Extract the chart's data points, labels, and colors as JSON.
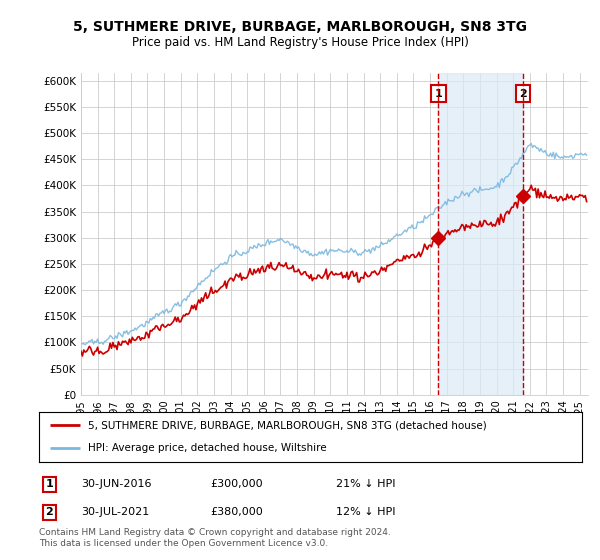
{
  "title": "5, SUTHMERE DRIVE, BURBAGE, MARLBOROUGH, SN8 3TG",
  "subtitle": "Price paid vs. HM Land Registry's House Price Index (HPI)",
  "ylabel_ticks": [
    "£0",
    "£50K",
    "£100K",
    "£150K",
    "£200K",
    "£250K",
    "£300K",
    "£350K",
    "£400K",
    "£450K",
    "£500K",
    "£550K",
    "£600K"
  ],
  "ytick_values": [
    0,
    50000,
    100000,
    150000,
    200000,
    250000,
    300000,
    350000,
    400000,
    450000,
    500000,
    550000,
    600000
  ],
  "ylim": [
    0,
    615000
  ],
  "xlim_start": 1995.0,
  "xlim_end": 2025.5,
  "hpi_color": "#7ab8e0",
  "hpi_fill_color": "#daeaf7",
  "price_color": "#cc0000",
  "dashed_line_color": "#cc0000",
  "marker1_year": 2016.5,
  "marker1_price": 300000,
  "marker2_year": 2021.583,
  "marker2_price": 380000,
  "legend_label1": "5, SUTHMERE DRIVE, BURBAGE, MARLBOROUGH, SN8 3TG (detached house)",
  "legend_label2": "HPI: Average price, detached house, Wiltshire",
  "annotation1_date": "30-JUN-2016",
  "annotation1_price": "£300,000",
  "annotation1_pct": "21% ↓ HPI",
  "annotation2_date": "30-JUL-2021",
  "annotation2_price": "£380,000",
  "annotation2_pct": "12% ↓ HPI",
  "footer": "Contains HM Land Registry data © Crown copyright and database right 2024.\nThis data is licensed under the Open Government Licence v3.0.",
  "bg_color": "#ffffff",
  "plot_bg_color": "#ffffff",
  "grid_color": "#cccccc"
}
